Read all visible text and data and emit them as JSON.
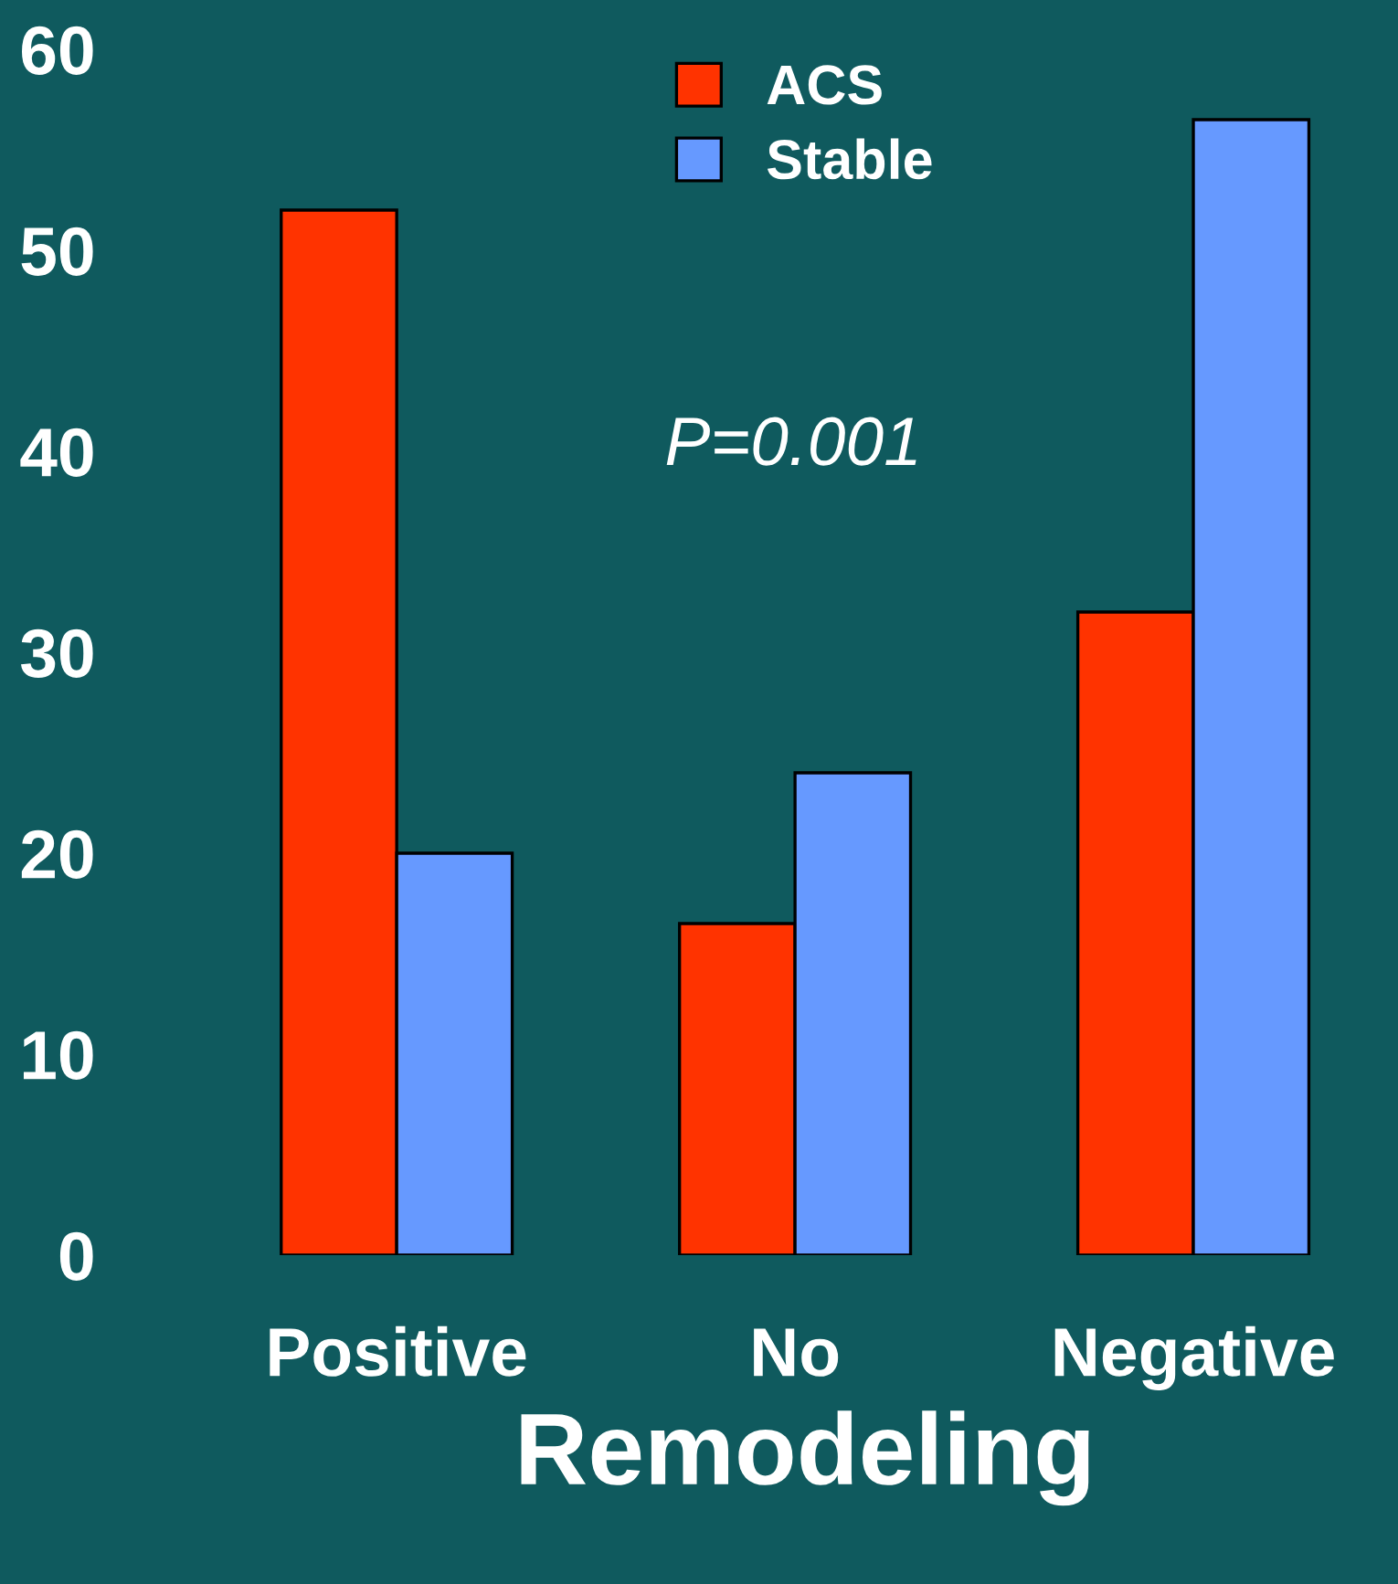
{
  "chart_data": {
    "type": "bar",
    "categories": [
      "Positive",
      "No",
      "Negative"
    ],
    "series": [
      {
        "name": "ACS",
        "color": "#ff3300",
        "values": [
          52,
          16.5,
          32
        ]
      },
      {
        "name": "Stable",
        "color": "#6699ff",
        "values": [
          20,
          24,
          56.5
        ]
      }
    ],
    "xlabel": "Remodeling",
    "annotations": [
      "P=0.001"
    ],
    "ylim": [
      0,
      60
    ],
    "yticks": [
      0,
      10,
      20,
      30,
      40,
      50,
      60
    ],
    "grid": false,
    "legend": "top"
  }
}
